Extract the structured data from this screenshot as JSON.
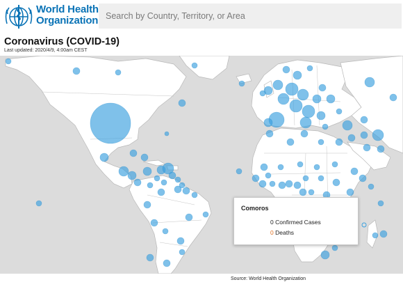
{
  "header": {
    "brand_line1": "World Health",
    "brand_line2": "Organization",
    "search_placeholder": "Search by Country, Territory, or Area"
  },
  "page": {
    "title": "Coronavirus (COVID-19)",
    "last_updated": "Last updated: 2020/4/9, 4:00am CEST"
  },
  "popup": {
    "country": "Comoros",
    "confirmed_value": "0",
    "confirmed_label": "Confirmed Cases",
    "deaths_value": "0",
    "deaths_label": "Deaths"
  },
  "footer": {
    "source": "Source:  World Health Organization"
  },
  "colors": {
    "brand": "#0a73b6",
    "bubble": "#3aa0df",
    "land": "#ffffff",
    "water": "#dcdcdc",
    "deaths": "#e07020"
  },
  "icons": {
    "logo": "who-emblem-icon"
  }
}
